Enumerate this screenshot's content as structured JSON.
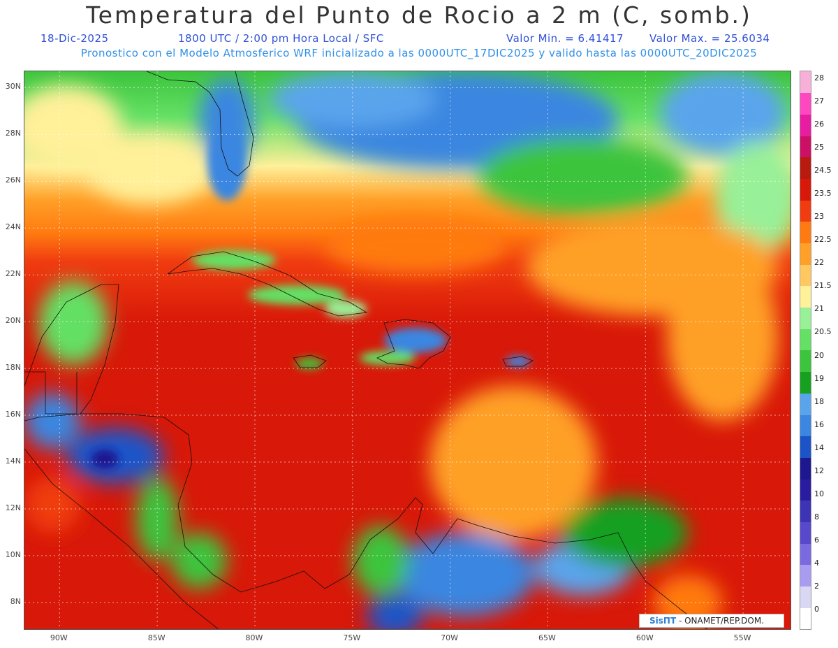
{
  "header": {
    "title": "Temperatura del Punto de Rocio a 2 m (C, somb.)",
    "date": "18-Dic-2025",
    "time": "1800 UTC / 2:00 pm Hora Local / SFC",
    "min_value": "Valor Min. = 6.41417",
    "max_value": "Valor Max. = 25.6034",
    "model_info": "Pronostico con el Modelo Atmosferico WRF inicializado a las 0000UTC_17DIC2025 y valido hasta las  0000UTC_20DIC2025"
  },
  "map": {
    "lat_labels": [
      "30N",
      "28N",
      "26N",
      "24N",
      "22N",
      "20N",
      "18N",
      "16N",
      "14N",
      "12N",
      "10N",
      "8N"
    ],
    "lon_labels": [
      "90W",
      "85W",
      "80W",
      "75W",
      "70W",
      "65W",
      "60W",
      "55W"
    ],
    "lat_values": [
      30,
      28,
      26,
      24,
      22,
      20,
      18,
      16,
      14,
      12,
      10,
      8
    ],
    "lon_values": [
      -90,
      -85,
      -80,
      -75,
      -70,
      -65,
      -60,
      -55
    ],
    "lat_range": [
      6.8,
      30.7
    ],
    "lon_range": [
      -91.8,
      -52.5
    ]
  },
  "colorbar": {
    "labels": [
      "0",
      "2",
      "4",
      "6",
      "8",
      "10",
      "12",
      "14",
      "16",
      "18",
      "19",
      "20",
      "20.5",
      "21",
      "21.5",
      "22",
      "22.5",
      "23",
      "23.5",
      "24.5",
      "25",
      "26",
      "27",
      "28"
    ],
    "colors": [
      "#ffffff",
      "#d8d8f4",
      "#a89cf0",
      "#7a6ae0",
      "#5848cc",
      "#3c34b4",
      "#2a1ca0",
      "#1e1890",
      "#1c54c8",
      "#3a86e0",
      "#5aa4ec",
      "#16a020",
      "#3cc43c",
      "#64e064",
      "#98f098",
      "#fff09a",
      "#ffc860",
      "#ffa028",
      "#ff7a10",
      "#f03c10",
      "#d81808",
      "#b81a10",
      "#cc1066",
      "#e81ca0",
      "#ff48c0",
      "#f8b0d8"
    ]
  },
  "credit": {
    "logo": "SisПТ",
    "text": "- ONAMET/REP.DOM."
  }
}
